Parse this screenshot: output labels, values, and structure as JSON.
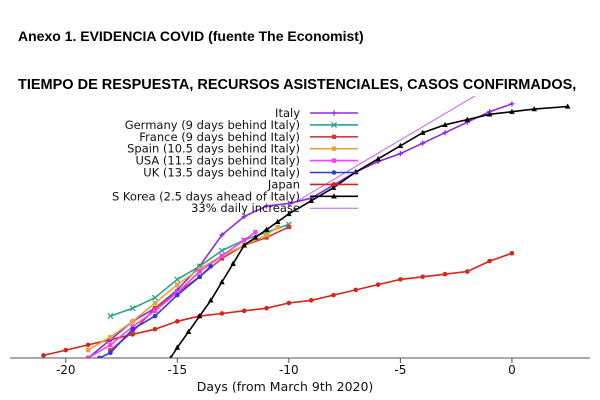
{
  "header": {
    "title": "Anexo 1. EVIDENCIA COVID (fuente The Economist)",
    "subtitle": "TIEMPO DE RESPUESTA, RECURSOS ASISTENCIALES, CASOS CONFIRMADOS,"
  },
  "chart_data": {
    "type": "line",
    "xlabel": "Days (from March 9th 2020)",
    "ylabel": "",
    "xlim": [
      -22.5,
      3.5
    ],
    "ylim": [
      0,
      100
    ],
    "x_ticks": [
      -20,
      -15,
      -10,
      -5,
      0
    ],
    "x_tick_labels": [
      "-20",
      "-15",
      "-10",
      "-5",
      "0"
    ],
    "y_scale": "log (relative index, no tick labels shown)",
    "grid": false,
    "legend_position": "top-left",
    "series": [
      {
        "name": "Italy",
        "color": "#8a2be2",
        "marker": "plus",
        "x": [
          -19,
          -18,
          -17,
          -16,
          -15,
          -14,
          -13,
          -12,
          -11,
          -10,
          -9,
          -8,
          -7,
          -6,
          -5,
          -4,
          -3,
          -2,
          -1,
          0
        ],
        "y": [
          0,
          7,
          14,
          19,
          26,
          35,
          47,
          54,
          58,
          59,
          61,
          66,
          71,
          75,
          78,
          82,
          86,
          90,
          94,
          97
        ]
      },
      {
        "name": "Germany (9 days behind Italy)",
        "color": "#2aa58b",
        "marker": "x",
        "x": [
          -18,
          -17,
          -16,
          -15,
          -14,
          -13,
          -12,
          -11,
          -10
        ],
        "y": [
          16,
          19,
          23,
          30,
          35,
          41,
          45,
          48,
          51
        ]
      },
      {
        "name": "France (9 days behind Italy)",
        "color": "#c8413b",
        "marker": "square",
        "x": [
          -18,
          -17,
          -16,
          -15,
          -14,
          -13,
          -12,
          -11,
          -10
        ],
        "y": [
          3,
          10,
          19,
          25,
          31,
          38,
          43,
          46,
          50
        ]
      },
      {
        "name": "Spain (10.5 days behind Italy)",
        "color": "#e8a23a",
        "marker": "square",
        "x": [
          -19,
          -18,
          -17,
          -16,
          -15,
          -14,
          -13,
          -12,
          -11,
          -10.5
        ],
        "y": [
          3,
          8,
          14,
          21,
          28,
          34,
          39,
          43,
          47,
          50
        ]
      },
      {
        "name": "USA (11.5 days behind Italy)",
        "color": "#ff3df0",
        "marker": "square",
        "x": [
          -19,
          -18,
          -17,
          -16,
          -15,
          -14,
          -13,
          -12,
          -11.5
        ],
        "y": [
          0,
          5,
          12,
          18,
          25,
          33,
          39,
          45,
          48
        ]
      },
      {
        "name": "UK (13.5 days behind Italy)",
        "color": "#2b3bd8",
        "marker": "dot",
        "x": [
          -18.5,
          -18,
          -17,
          -16,
          -15,
          -14,
          -13.5
        ],
        "y": [
          0,
          2,
          11,
          16,
          24,
          31,
          35
        ]
      },
      {
        "name": "Japan",
        "color": "#d62418",
        "marker": "dot",
        "x": [
          -21,
          -20,
          -19,
          -18,
          -17,
          -16,
          -15,
          -14,
          -13,
          -12,
          -11,
          -10,
          -9,
          -8,
          -7,
          -6,
          -5,
          -4,
          -3,
          -2,
          -1,
          0
        ],
        "y": [
          1,
          3,
          5,
          7,
          9,
          11,
          14,
          16,
          17,
          18,
          19,
          21,
          22,
          24,
          26,
          28,
          30,
          31,
          32,
          33,
          37,
          40
        ]
      },
      {
        "name": "S Korea (2.5 days ahead of Italy)",
        "color": "#000000",
        "marker": "triangle",
        "x": [
          -15.3,
          -15,
          -14.5,
          -14,
          -13.5,
          -13,
          -12.5,
          -12,
          -11.5,
          -11,
          -10.5,
          -10,
          -9,
          -8,
          -7,
          -6,
          -5,
          -4,
          -3,
          -2,
          -1,
          0,
          1,
          2.5
        ],
        "y": [
          0,
          4,
          10,
          16,
          22,
          29,
          36,
          43,
          46,
          49,
          52,
          55,
          60,
          65,
          71,
          76,
          81,
          86,
          89,
          91,
          93,
          94,
          95,
          96
        ]
      },
      {
        "name": "33% daily increase",
        "color": "#c85ff0",
        "marker": "none",
        "x": [
          -10,
          2.5
        ],
        "y": [
          58,
          121
        ]
      }
    ]
  }
}
